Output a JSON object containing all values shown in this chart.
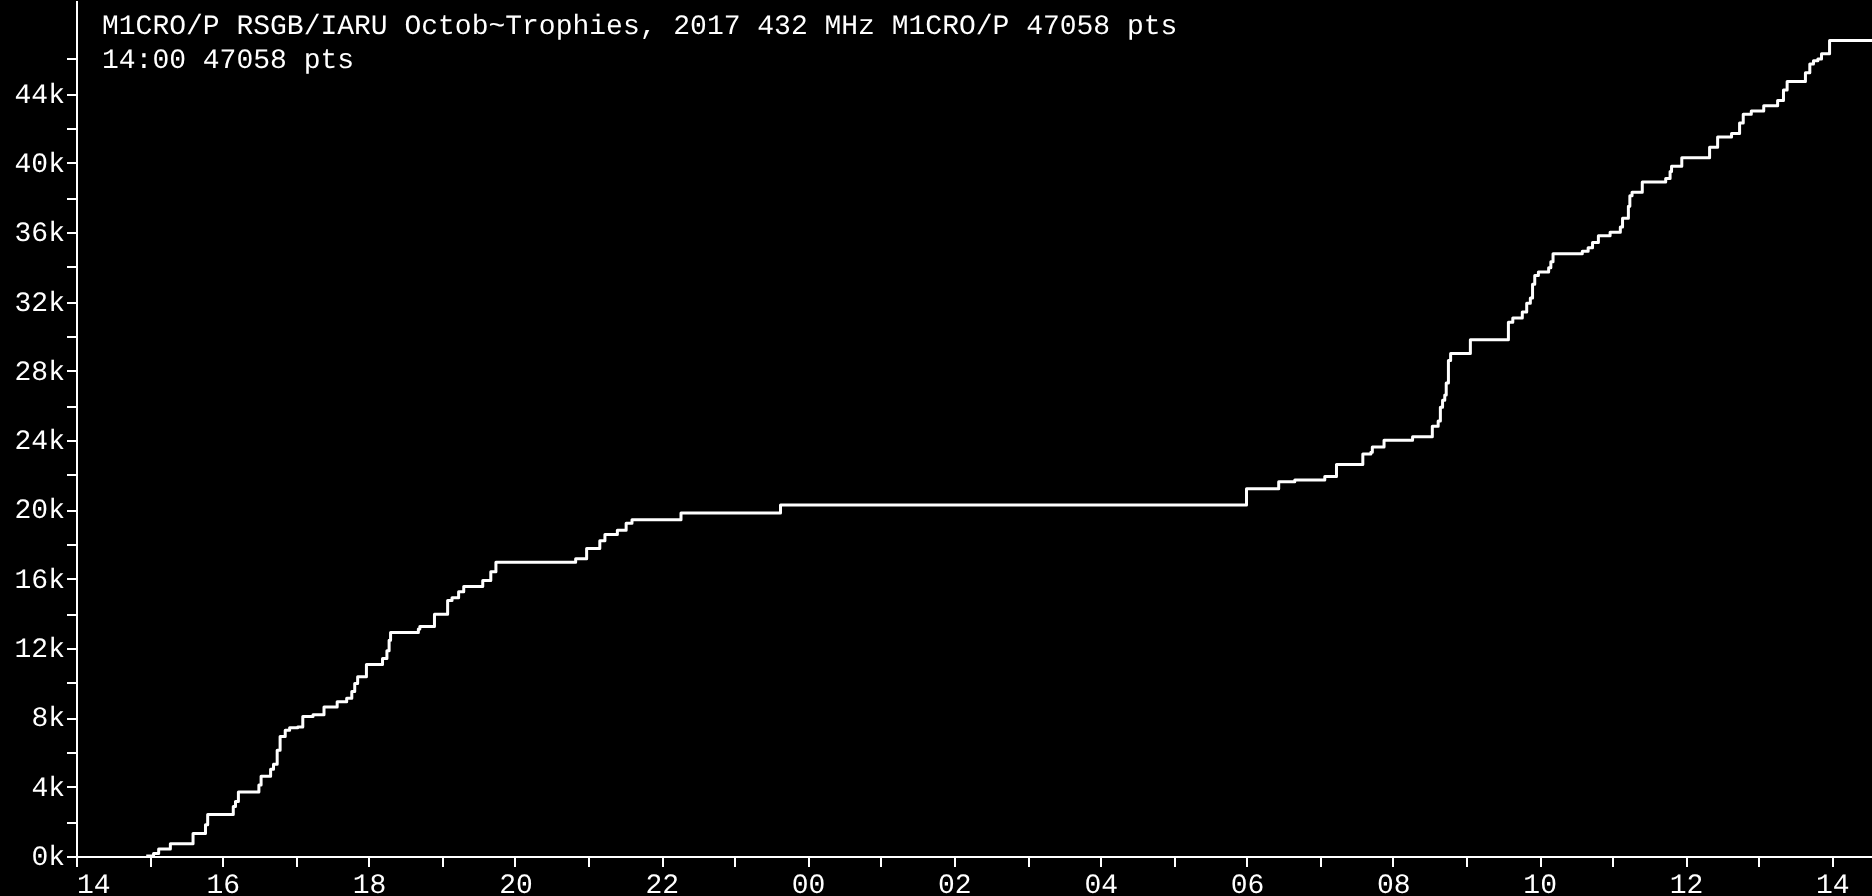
{
  "chart_data": {
    "type": "step",
    "title": "M1CRO/P      RSGB/IARU Octob~Trophies, 2017 432 MHz  M1CRO/P 47058 pts",
    "subtitle": "14:00  47058 pts",
    "x": [
      14.96,
      15.06,
      15.13,
      15.29,
      15.6,
      15.77,
      15.8,
      16.15,
      16.18,
      16.22,
      16.5,
      16.53,
      16.66,
      16.7,
      16.75,
      16.79,
      16.86,
      16.92,
      17.03,
      17.1,
      17.24,
      17.39,
      17.57,
      17.7,
      17.77,
      17.81,
      17.85,
      17.97,
      18.19,
      18.25,
      18.28,
      18.3,
      18.68,
      18.7,
      18.9,
      19.08,
      19.14,
      19.23,
      19.3,
      19.56,
      19.67,
      19.74,
      20.83,
      20.98,
      21.16,
      21.23,
      21.4,
      21.52,
      21.6,
      22.27,
      23.63,
      30.0,
      30.44,
      30.66,
      31.07,
      31.23,
      31.59,
      31.7,
      31.72,
      31.88,
      32.27,
      32.54,
      32.62,
      32.65,
      32.68,
      32.71,
      32.73,
      32.76,
      32.79,
      33.06,
      33.58,
      33.64,
      33.77,
      33.83,
      33.88,
      33.91,
      33.94,
      33.99,
      34.13,
      34.16,
      34.19,
      34.59,
      34.67,
      34.73,
      34.81,
      34.97,
      35.11,
      35.14,
      35.22,
      35.24,
      35.27,
      35.41,
      35.73,
      35.79,
      35.81,
      35.95,
      36.33,
      36.44,
      36.63,
      36.74,
      36.79,
      36.9,
      37.07,
      37.26,
      37.34,
      37.39,
      37.64,
      37.7,
      37.75,
      37.81,
      37.86,
      37.97,
      38.55
    ],
    "series": [
      {
        "color": "#ffffff",
        "values": [
          0,
          150,
          400,
          700,
          1300,
          1800,
          2400,
          2850,
          3150,
          3700,
          4100,
          4600,
          5000,
          5300,
          6100,
          6900,
          7250,
          7400,
          7450,
          8050,
          8150,
          8600,
          8900,
          9100,
          9500,
          9950,
          10350,
          11050,
          11400,
          11850,
          12450,
          12900,
          13100,
          13250,
          13950,
          14750,
          14900,
          15250,
          15550,
          15900,
          16400,
          16950,
          17150,
          17750,
          18200,
          18550,
          18800,
          19200,
          19400,
          19800,
          20250,
          21200,
          21600,
          21700,
          21900,
          22600,
          23200,
          23300,
          23600,
          24000,
          24200,
          24800,
          25100,
          25900,
          26300,
          26600,
          27300,
          28600,
          29000,
          29800,
          30800,
          31050,
          31400,
          31900,
          32200,
          33000,
          33500,
          33700,
          33950,
          34300,
          34750,
          34900,
          35100,
          35400,
          35800,
          36000,
          36300,
          36800,
          37500,
          38100,
          38300,
          38900,
          39100,
          39500,
          39800,
          40300,
          40900,
          41500,
          41700,
          42300,
          42800,
          43000,
          43300,
          43600,
          44200,
          44700,
          45200,
          45700,
          45900,
          46000,
          46300,
          47058,
          47058
        ]
      }
    ],
    "xlim": [
      14,
      38.55
    ],
    "xticks": [
      {
        "value": 14,
        "label": "14"
      },
      {
        "value": 15,
        "label": null
      },
      {
        "value": 16,
        "label": "16"
      },
      {
        "value": 17,
        "label": null
      },
      {
        "value": 18,
        "label": "18"
      },
      {
        "value": 19,
        "label": null
      },
      {
        "value": 20,
        "label": "20"
      },
      {
        "value": 21,
        "label": null
      },
      {
        "value": 22,
        "label": "22"
      },
      {
        "value": 23,
        "label": null
      },
      {
        "value": 24,
        "label": "00"
      },
      {
        "value": 25,
        "label": null
      },
      {
        "value": 26,
        "label": "02"
      },
      {
        "value": 27,
        "label": null
      },
      {
        "value": 28,
        "label": "04"
      },
      {
        "value": 29,
        "label": null
      },
      {
        "value": 30,
        "label": "06"
      },
      {
        "value": 31,
        "label": null
      },
      {
        "value": 32,
        "label": "08"
      },
      {
        "value": 33,
        "label": null
      },
      {
        "value": 34,
        "label": "10"
      },
      {
        "value": 35,
        "label": null
      },
      {
        "value": 36,
        "label": "12"
      },
      {
        "value": 37,
        "label": null
      },
      {
        "value": 38,
        "label": "14"
      }
    ],
    "ylim": [
      0,
      49400
    ],
    "yticks": [
      {
        "value": 0,
        "label": "0k"
      },
      {
        "value": 2000,
        "label": null
      },
      {
        "value": 4000,
        "label": "4k"
      },
      {
        "value": 6000,
        "label": null
      },
      {
        "value": 8000,
        "label": "8k"
      },
      {
        "value": 10000,
        "label": null
      },
      {
        "value": 12000,
        "label": "12k"
      },
      {
        "value": 14000,
        "label": null
      },
      {
        "value": 16000,
        "label": "16k"
      },
      {
        "value": 18000,
        "label": null
      },
      {
        "value": 20000,
        "label": "20k"
      },
      {
        "value": 22000,
        "label": null
      },
      {
        "value": 24000,
        "label": "24k"
      },
      {
        "value": 26000,
        "label": null
      },
      {
        "value": 28000,
        "label": "28k"
      },
      {
        "value": 30000,
        "label": null
      },
      {
        "value": 32000,
        "label": "32k"
      },
      {
        "value": 34000,
        "label": null
      },
      {
        "value": 36000,
        "label": "36k"
      },
      {
        "value": 38000,
        "label": null
      },
      {
        "value": 40000,
        "label": "40k"
      },
      {
        "value": 42000,
        "label": null
      },
      {
        "value": 44000,
        "label": "44k"
      },
      {
        "value": 46000,
        "label": null
      }
    ],
    "grid": false,
    "marker": "none",
    "line_style": "solid"
  }
}
